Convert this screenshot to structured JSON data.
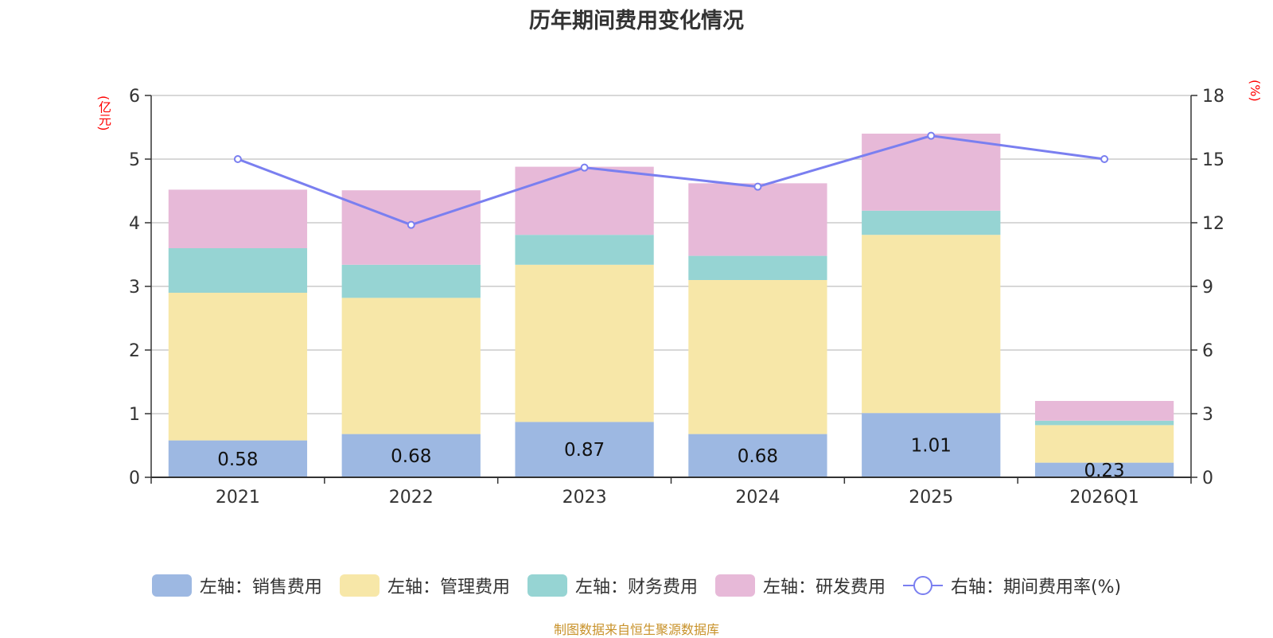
{
  "chart_data": {
    "type": "bar",
    "title": "历年期间费用变化情况",
    "categories": [
      "2021",
      "2022",
      "2023",
      "2024",
      "2025",
      "2026Q1"
    ],
    "series": [
      {
        "name": "左轴：销售费用",
        "kind": "bar",
        "axis": "left",
        "color": "#9db8e2",
        "values": [
          0.58,
          0.68,
          0.87,
          0.68,
          1.01,
          0.23
        ],
        "labels": [
          "0.58",
          "0.68",
          "0.87",
          "0.68",
          "1.01",
          "0.23"
        ]
      },
      {
        "name": "左轴：管理费用",
        "kind": "bar",
        "axis": "left",
        "color": "#f7e7a8",
        "values": [
          2.32,
          2.14,
          2.47,
          2.42,
          2.8,
          0.59
        ]
      },
      {
        "name": "左轴：财务费用",
        "kind": "bar",
        "axis": "left",
        "color": "#96d4d3",
        "values": [
          0.7,
          0.52,
          0.47,
          0.38,
          0.38,
          0.07
        ]
      },
      {
        "name": "左轴：研发费用",
        "kind": "bar",
        "axis": "left",
        "color": "#e7b9d8",
        "values": [
          0.92,
          1.17,
          1.07,
          1.14,
          1.21,
          0.31
        ]
      },
      {
        "name": "右轴：期间费用率(%)",
        "kind": "line",
        "axis": "right",
        "color": "#7a7ff0",
        "values": [
          15.0,
          11.9,
          14.6,
          13.7,
          16.1,
          15.0
        ]
      }
    ],
    "yleft": {
      "unit": "(亿元)",
      "ylim": [
        0,
        6
      ],
      "ticks": [
        "0",
        "1",
        "2",
        "3",
        "4",
        "5",
        "6"
      ]
    },
    "yright": {
      "unit": "(%)",
      "ylim": [
        0,
        18
      ],
      "ticks": [
        "0",
        "3",
        "6",
        "9",
        "12",
        "15",
        "18"
      ]
    },
    "grid": true,
    "legend_position": "bottom",
    "source": "制图数据来自恒生聚源数据库"
  }
}
